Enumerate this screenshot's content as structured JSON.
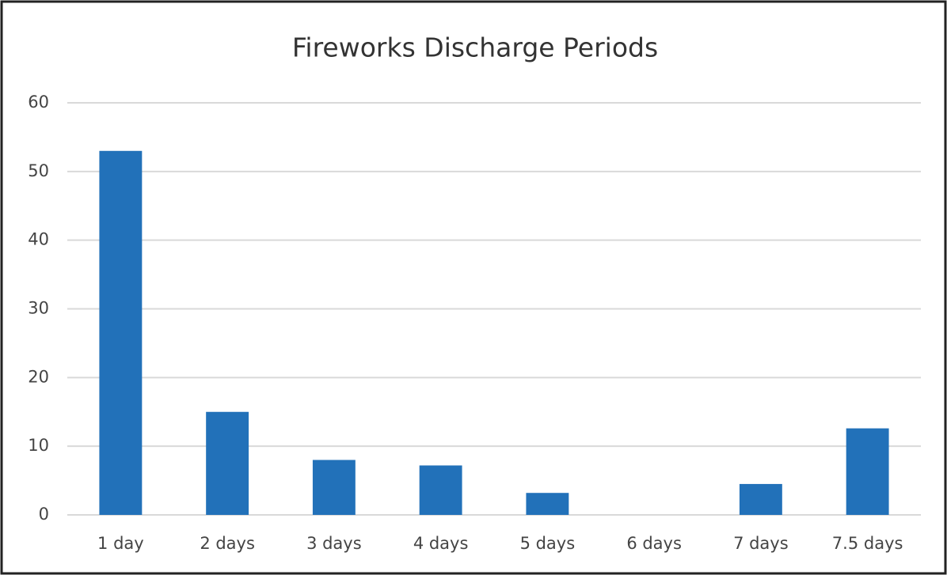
{
  "chart_data": {
    "type": "bar",
    "title": "Fireworks Discharge Periods",
    "categories": [
      "1 day",
      "2 days",
      "3 days",
      "4 days",
      "5 days",
      "6 days",
      "7 days",
      "7.5 days"
    ],
    "values": [
      53,
      15,
      8,
      7.2,
      3.2,
      0,
      4.5,
      12.6
    ],
    "color": "#2271b9",
    "ylim": [
      0,
      60
    ],
    "yticks": [
      0,
      10,
      20,
      30,
      40,
      50,
      60
    ],
    "grid": true
  }
}
